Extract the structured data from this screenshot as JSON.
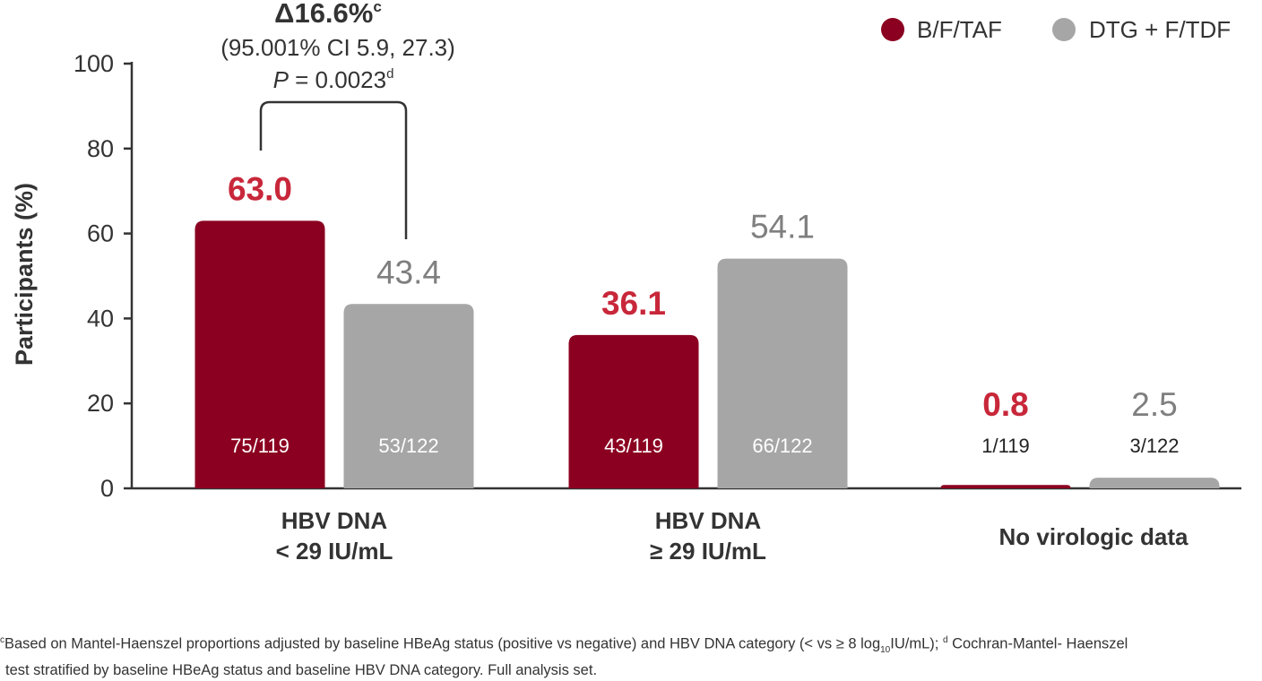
{
  "chart_data": {
    "type": "bar",
    "ylabel": "Participants (%)",
    "ylim": [
      0,
      100
    ],
    "yticks": [
      0,
      20,
      40,
      60,
      80,
      100
    ],
    "legend_position": "top-right",
    "colors": {
      "series1": "#8b0020",
      "series2": "#a6a6a6",
      "label1": "#c8273a",
      "label2": "#7f7f7f"
    },
    "categories": [
      {
        "line1": "HBV DNA",
        "line2": "< 29 IU/mL"
      },
      {
        "line1": "HBV DNA",
        "line2": "≥ 29 IU/mL"
      },
      {
        "line1": "No virologic data",
        "line2": ""
      }
    ],
    "series": [
      {
        "name": "B/F/TAF",
        "values": [
          63.0,
          36.1,
          0.8
        ],
        "value_labels": [
          "63.0",
          "36.1",
          "0.8"
        ],
        "counts": [
          "75/119",
          "43/119",
          "1/119"
        ]
      },
      {
        "name": "DTG + F/TDF",
        "values": [
          43.4,
          54.1,
          2.5
        ],
        "value_labels": [
          "43.4",
          "54.1",
          "2.5"
        ],
        "counts": [
          "53/122",
          "66/122",
          "3/122"
        ]
      }
    ],
    "annotation": {
      "delta": "Δ16.6%",
      "delta_sup": "c",
      "ci": "(95.001% CI 5.9, 27.3)",
      "p_letter": "P",
      "p_value": " = 0.0023",
      "p_sup": "d"
    }
  },
  "footnote": {
    "mark_c": "c",
    "text1": "Based on Mantel-Haenszel proportions adjusted by baseline HBeAg status (positive vs negative) and HBV DNA category (< vs ≥ 8 log",
    "sub": "10",
    "text2": "IU/mL);",
    "mark_d": "d",
    "text3": " Cochran-Mantel- Haenszel",
    "line2": "test stratified by baseline HBeAg status and baseline HBV DNA category. Full analysis set."
  }
}
